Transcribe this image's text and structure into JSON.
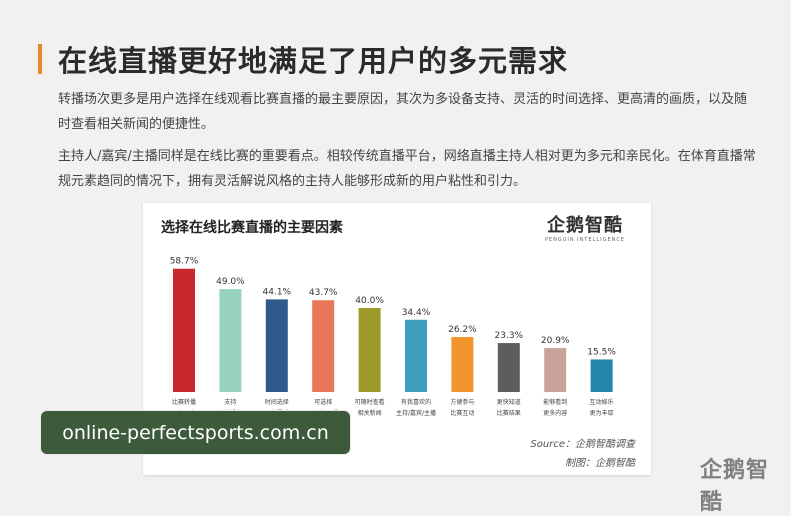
{
  "header": {
    "title": "在线直播更好地满足了用户的多元需求",
    "paragraph1": "转播场次更多是用户选择在线观看比赛直播的最主要原因，其次为多设备支持、灵活的时间选择、更高清的画质，以及随时查看相关新闻的便捷性。",
    "paragraph2": "主持人/嘉宾/主播同样是在线比赛的重要看点。相较传统直播平台，网络直播主持人相对更为多元和亲民化。在体育直播常规元素趋同的情况下，拥有灵活解说风格的主持人能够形成新的用户粘性和引力。"
  },
  "card": {
    "brand": "企鹅智酷",
    "brand_sub": "PENGUIN INTELLIGENCE",
    "source": "Source：企鹅智酷调查",
    "credit": "制图：企鹅智酷"
  },
  "watermark": "企鹅智酷",
  "url_label": "online-perfectsports.com.cn",
  "chart_data": {
    "type": "bar",
    "title": "选择在线比赛直播的主要因素",
    "categories": [
      [
        "比赛转播",
        "场次更多"
      ],
      [
        "支持",
        "多种设备"
      ],
      [
        "时间选择",
        "更为灵活"
      ],
      [
        "可选择",
        "更高清画质"
      ],
      [
        "可随时查看",
        "相关新闻"
      ],
      [
        "有我喜欢的",
        "主持/嘉宾/主播"
      ],
      [
        "方便参与",
        "比赛互动"
      ],
      [
        "更快知道",
        "比赛结果"
      ],
      [
        "能够看到",
        "更多内容"
      ],
      [
        "互动娱乐",
        "更为丰厚"
      ]
    ],
    "values": [
      58.7,
      49.0,
      44.1,
      43.7,
      40.0,
      34.4,
      26.2,
      23.3,
      20.9,
      15.5
    ],
    "value_labels": [
      "58.7%",
      "49.0%",
      "44.1%",
      "43.7%",
      "40.0%",
      "34.4%",
      "26.2%",
      "23.3%",
      "20.9%",
      "15.5%"
    ],
    "colors": [
      "#c8282d",
      "#96d2bd",
      "#2e5b8c",
      "#e8775a",
      "#9e9a2c",
      "#3e9fbd",
      "#f0952d",
      "#5d5d5d",
      "#c9a39b",
      "#2385a8"
    ],
    "ylim": [
      0,
      100
    ],
    "grid": false
  }
}
